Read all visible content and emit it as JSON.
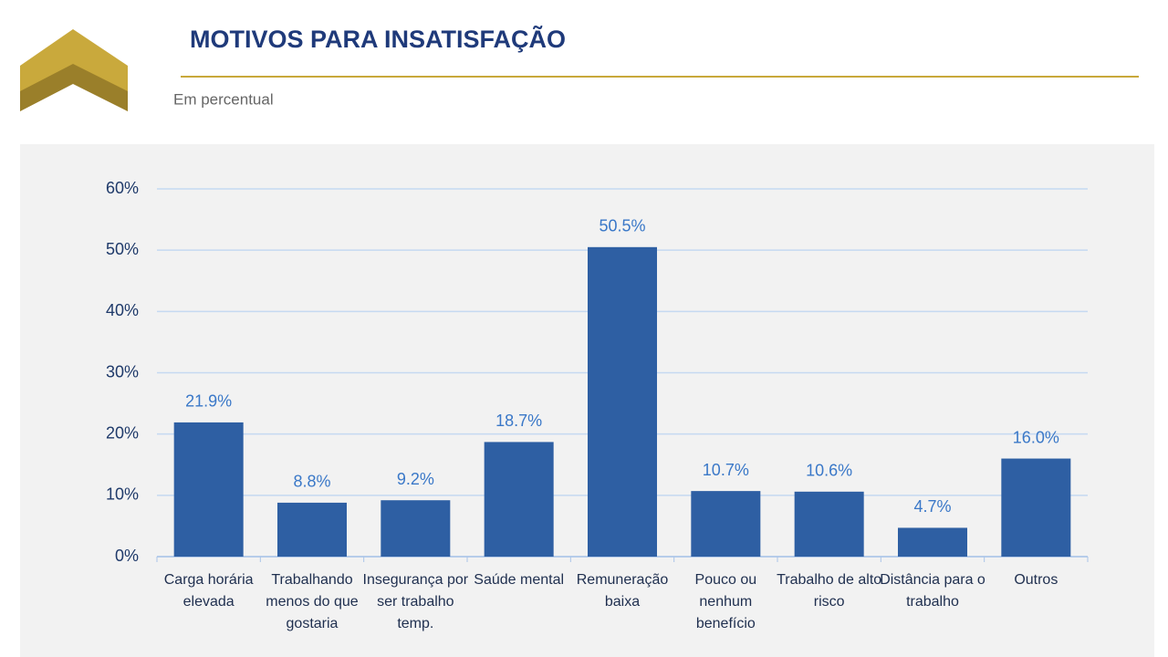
{
  "header": {
    "title": "MOTIVOS PARA INSATISFAÇÃO",
    "subtitle": "Em percentual"
  },
  "chart_data": {
    "type": "bar",
    "categories": [
      "Carga horária elevada",
      "Trabalhando menos do que gostaria",
      "Insegurança por ser trabalho temp.",
      "Saúde mental",
      "Remuneração baixa",
      "Pouco ou nenhum benefício",
      "Trabalho de alto risco",
      "Distância para o trabalho",
      "Outros"
    ],
    "values": [
      21.9,
      8.8,
      9.2,
      18.7,
      50.5,
      10.7,
      10.6,
      4.7,
      16.0
    ],
    "value_labels": [
      "21.9%",
      "8.8%",
      "9.2%",
      "18.7%",
      "50.5%",
      "10.7%",
      "10.6%",
      "4.7%",
      "16.0%"
    ],
    "color": "#2e5fa3",
    "ylim": [
      0,
      60
    ],
    "yticks": [
      {
        "value": 0,
        "label": "0%"
      },
      {
        "value": 10,
        "label": "10%"
      },
      {
        "value": 20,
        "label": "20%"
      },
      {
        "value": 30,
        "label": "30%"
      },
      {
        "value": 40,
        "label": "40%"
      },
      {
        "value": 50,
        "label": "50%"
      },
      {
        "value": 60,
        "label": "60%"
      }
    ],
    "grid": true
  }
}
